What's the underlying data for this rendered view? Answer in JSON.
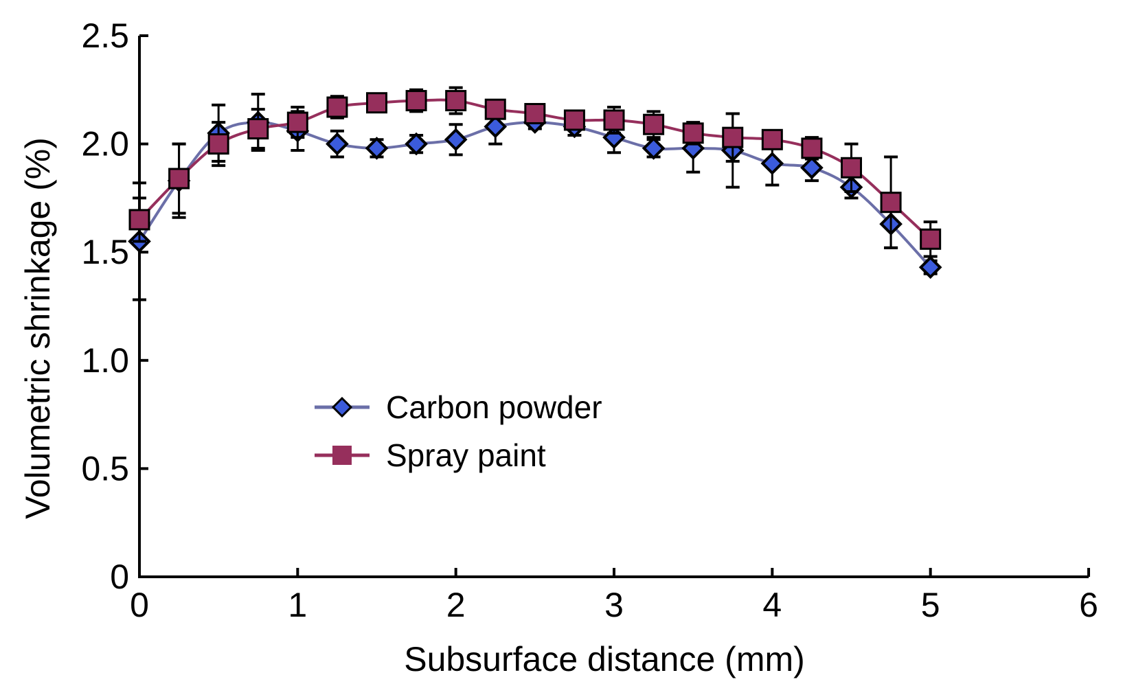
{
  "chart_data": {
    "type": "line",
    "xlabel": "Subsurface distance (mm)",
    "ylabel": "Volumetric shrinkage (%)",
    "xlim": [
      0,
      6
    ],
    "ylim": [
      0,
      2.5
    ],
    "xticks": [
      0,
      1,
      2,
      3,
      4,
      5,
      6
    ],
    "xtick_labels": [
      "0",
      "1",
      "2",
      "3",
      "4",
      "5",
      "6"
    ],
    "yticks": [
      0,
      0.5,
      1.0,
      1.5,
      2.0,
      2.5
    ],
    "ytick_labels": [
      "0",
      "0.5",
      "1.0",
      "1.5",
      "2.0",
      "2.5"
    ],
    "grid": false,
    "legend_position": "center-left",
    "x": [
      0,
      0.25,
      0.5,
      0.75,
      1,
      1.25,
      1.5,
      1.75,
      2,
      2.25,
      2.5,
      2.75,
      3,
      3.25,
      3.5,
      3.75,
      4,
      4.25,
      4.5,
      4.75,
      5
    ],
    "series": [
      {
        "name": "Carbon powder",
        "marker": "diamond",
        "line_color": "#6b6fa8",
        "marker_color": "#3b5bdb",
        "values": [
          1.55,
          1.83,
          2.05,
          2.1,
          2.06,
          2.0,
          1.98,
          2.0,
          2.02,
          2.08,
          2.1,
          2.08,
          2.03,
          1.98,
          1.98,
          1.97,
          1.91,
          1.89,
          1.8,
          1.63,
          1.43
        ],
        "errors": [
          0.27,
          0.17,
          0.13,
          0.13,
          0.09,
          0.06,
          0.04,
          0.04,
          0.07,
          0.08,
          0.03,
          0.04,
          0.07,
          0.04,
          0.11,
          0.17,
          0.1,
          0.06,
          0.05,
          0.11,
          0.03
        ]
      },
      {
        "name": "Spray paint",
        "marker": "square",
        "line_color": "#962f5c",
        "marker_color": "#962f5c",
        "values": [
          1.65,
          1.84,
          2.0,
          2.07,
          2.1,
          2.17,
          2.19,
          2.2,
          2.2,
          2.16,
          2.14,
          2.11,
          2.11,
          2.09,
          2.05,
          2.03,
          2.02,
          1.98,
          1.89,
          1.73,
          1.56
        ],
        "errors": [
          0.1,
          0.16,
          0.1,
          0.09,
          0.07,
          0.05,
          0.04,
          0.05,
          0.06,
          0.04,
          0.03,
          0.03,
          0.06,
          0.06,
          0.05,
          0.11,
          0.04,
          0.05,
          0.11,
          0.21,
          0.08
        ]
      }
    ]
  }
}
